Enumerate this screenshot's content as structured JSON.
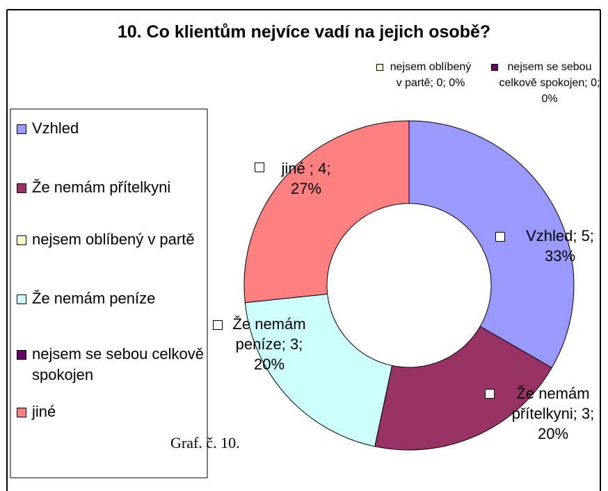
{
  "chart_data": {
    "type": "doughnut",
    "title": "10. Co klientům nejvíce vadí na jejich osobě?",
    "categories": [
      "Vzhled",
      "Že nemám přítelkyni",
      "nejsem oblíbený v partě",
      "Že nemám peníze",
      "nejsem se sebou celkově spokojen",
      "jiné"
    ],
    "values": [
      5,
      3,
      0,
      3,
      0,
      4
    ],
    "value_labels": [
      "Vzhled; 5; 33%",
      "Že nemám přítelkyni; 3; 20%",
      "nejsem oblíbený v partě; 0; 0%",
      "Že nemám peníze; 3; 20%",
      "nejsem se sebou celkově spokojen; 0; 0%",
      "jiné ; 4; 27%"
    ],
    "colors": [
      "#9999ff",
      "#993366",
      "#ffffcc",
      "#ccffff",
      "#660066",
      "#ff8080"
    ],
    "legend": "left"
  },
  "caption": "Graf. č. 10."
}
